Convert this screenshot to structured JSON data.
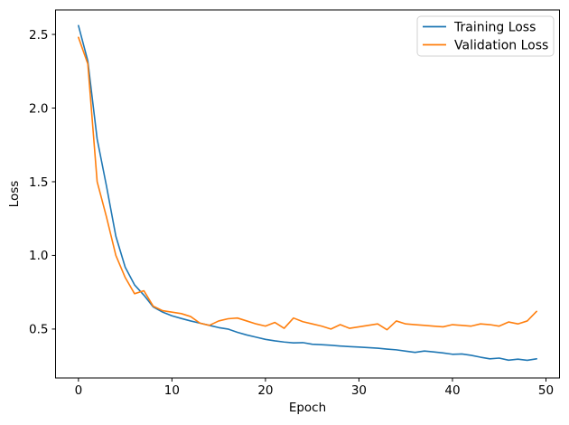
{
  "chart_data": {
    "type": "line",
    "title": "",
    "xlabel": "Epoch",
    "ylabel": "Loss",
    "xticks": [
      0,
      10,
      20,
      30,
      40,
      50
    ],
    "yticks": [
      0.5,
      1.0,
      1.5,
      2.0,
      2.5
    ],
    "xlim": [
      -2.45,
      51.45
    ],
    "ylim": [
      0.168,
      2.666
    ],
    "grid": false,
    "legend_position": "upper right",
    "x": [
      0,
      1,
      2,
      3,
      4,
      5,
      6,
      7,
      8,
      9,
      10,
      11,
      12,
      13,
      14,
      15,
      16,
      17,
      18,
      19,
      20,
      21,
      22,
      23,
      24,
      25,
      26,
      27,
      28,
      29,
      30,
      31,
      32,
      33,
      34,
      35,
      36,
      37,
      38,
      39,
      40,
      41,
      42,
      43,
      44,
      45,
      46,
      47,
      48,
      49
    ],
    "series": [
      {
        "name": "Training Loss",
        "color": "#1f77b4",
        "values": [
          2.56,
          2.32,
          1.79,
          1.47,
          1.13,
          0.92,
          0.8,
          0.73,
          0.65,
          0.615,
          0.59,
          0.572,
          0.555,
          0.54,
          0.525,
          0.51,
          0.5,
          0.478,
          0.46,
          0.445,
          0.43,
          0.42,
          0.412,
          0.406,
          0.408,
          0.397,
          0.394,
          0.39,
          0.385,
          0.381,
          0.378,
          0.374,
          0.37,
          0.364,
          0.359,
          0.35,
          0.342,
          0.351,
          0.345,
          0.338,
          0.329,
          0.331,
          0.322,
          0.309,
          0.298,
          0.303,
          0.289,
          0.296,
          0.288,
          0.298
        ]
      },
      {
        "name": "Validation Loss",
        "color": "#ff7f0e",
        "values": [
          2.48,
          2.3,
          1.5,
          1.26,
          1.0,
          0.85,
          0.74,
          0.76,
          0.655,
          0.625,
          0.615,
          0.605,
          0.585,
          0.54,
          0.525,
          0.555,
          0.57,
          0.575,
          0.555,
          0.535,
          0.52,
          0.545,
          0.505,
          0.575,
          0.55,
          0.535,
          0.52,
          0.5,
          0.53,
          0.505,
          0.515,
          0.525,
          0.535,
          0.495,
          0.555,
          0.535,
          0.53,
          0.525,
          0.52,
          0.515,
          0.53,
          0.525,
          0.52,
          0.535,
          0.53,
          0.52,
          0.548,
          0.535,
          0.555,
          0.62
        ]
      }
    ]
  }
}
